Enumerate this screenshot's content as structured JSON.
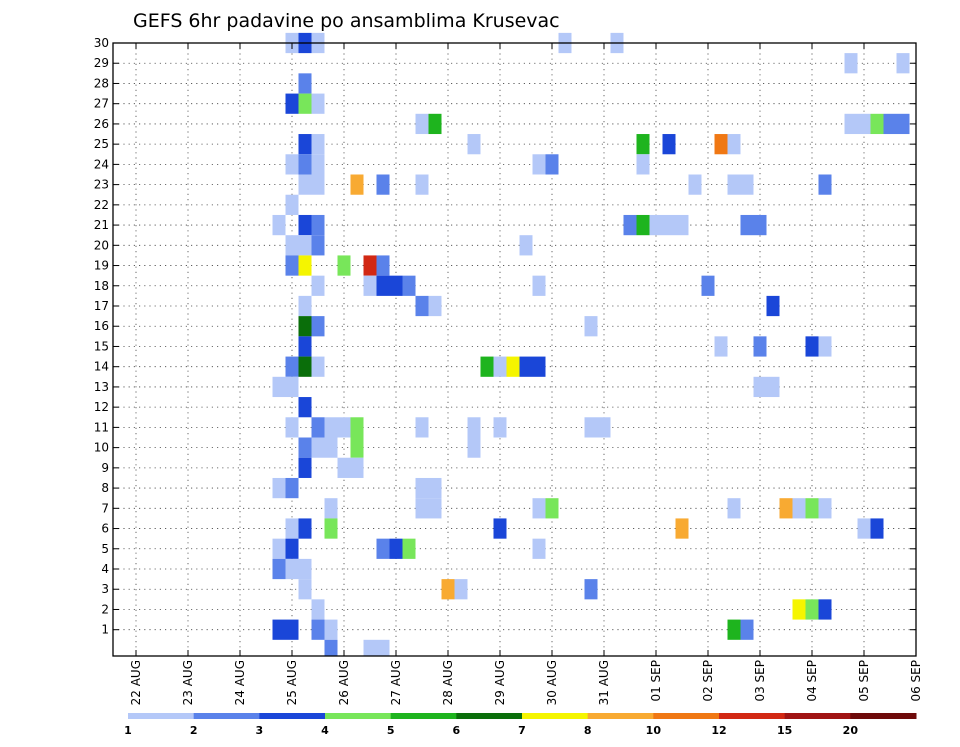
{
  "chart_data": {
    "type": "heatmap",
    "title": "GEFS 6hr padavine po ansamblima Krusevac",
    "xlabel": "",
    "ylabel": "",
    "x_range": [
      "22 AUG",
      "06 SEP"
    ],
    "y_range": [
      0,
      30
    ],
    "x_step": "6h",
    "grid": true,
    "x_ticks": [
      "22 AUG",
      "23 AUG",
      "24 AUG",
      "25 AUG",
      "26 AUG",
      "27 AUG",
      "28 AUG",
      "29 AUG",
      "30 AUG",
      "31 AUG",
      "01 SEP",
      "02 SEP",
      "03 SEP",
      "04 SEP",
      "05 SEP",
      "06 SEP"
    ],
    "y_ticks": [
      1,
      2,
      3,
      4,
      5,
      6,
      7,
      8,
      9,
      10,
      11,
      12,
      13,
      14,
      15,
      16,
      17,
      18,
      19,
      20,
      21,
      22,
      23,
      24,
      25,
      26,
      27,
      28,
      29,
      30
    ],
    "legend": {
      "position": "bottom",
      "labels": [
        "1",
        "2",
        "3",
        "4",
        "5",
        "6",
        "7",
        "8",
        "10",
        "12",
        "15",
        "20"
      ],
      "colors": [
        "#b4c8f8",
        "#5a82ea",
        "#1a46d8",
        "#78e65a",
        "#1eb41e",
        "#0a6e0a",
        "#f5f500",
        "#f8aa32",
        "#f07814",
        "#d22814",
        "#a01414",
        "#6e0a0a"
      ]
    },
    "cell_date_format": "DD MMM HH (UTC)",
    "cells": [
      {
        "m": 30,
        "t": "25 AUG 00",
        "c": 1
      },
      {
        "m": 30,
        "t": "25 AUG 06",
        "c": 3
      },
      {
        "m": 30,
        "t": "25 AUG 12",
        "c": 1
      },
      {
        "m": 30,
        "t": "30 AUG 06",
        "c": 1
      },
      {
        "m": 30,
        "t": "31 AUG 06",
        "c": 1
      },
      {
        "m": 29,
        "t": "04 SEP 18",
        "c": 1
      },
      {
        "m": 29,
        "t": "05 SEP 18",
        "c": 1
      },
      {
        "m": 28,
        "t": "25 AUG 06",
        "c": 2
      },
      {
        "m": 27,
        "t": "25 AUG 00",
        "c": 3
      },
      {
        "m": 27,
        "t": "25 AUG 06",
        "c": 4
      },
      {
        "m": 27,
        "t": "25 AUG 12",
        "c": 1
      },
      {
        "m": 26,
        "t": "27 AUG 12",
        "c": 1
      },
      {
        "m": 26,
        "t": "27 AUG 18",
        "c": 5
      },
      {
        "m": 26,
        "t": "04 SEP 18",
        "c": 1
      },
      {
        "m": 26,
        "t": "05 SEP 00",
        "c": 1
      },
      {
        "m": 26,
        "t": "05 SEP 06",
        "c": 4
      },
      {
        "m": 26,
        "t": "05 SEP 12",
        "c": 2
      },
      {
        "m": 26,
        "t": "05 SEP 18",
        "c": 2
      },
      {
        "m": 25,
        "t": "25 AUG 06",
        "c": 3
      },
      {
        "m": 25,
        "t": "25 AUG 12",
        "c": 1
      },
      {
        "m": 25,
        "t": "28 AUG 12",
        "c": 1
      },
      {
        "m": 25,
        "t": "31 AUG 18",
        "c": 5
      },
      {
        "m": 25,
        "t": "01 SEP 06",
        "c": 3
      },
      {
        "m": 25,
        "t": "02 SEP 06",
        "c": 10
      },
      {
        "m": 25,
        "t": "02 SEP 12",
        "c": 1
      },
      {
        "m": 24,
        "t": "25 AUG 00",
        "c": 1
      },
      {
        "m": 24,
        "t": "25 AUG 06",
        "c": 2
      },
      {
        "m": 24,
        "t": "25 AUG 12",
        "c": 1
      },
      {
        "m": 24,
        "t": "29 AUG 18",
        "c": 1
      },
      {
        "m": 24,
        "t": "30 AUG 00",
        "c": 2
      },
      {
        "m": 24,
        "t": "31 AUG 18",
        "c": 1
      },
      {
        "m": 23,
        "t": "25 AUG 06",
        "c": 1
      },
      {
        "m": 23,
        "t": "25 AUG 12",
        "c": 1
      },
      {
        "m": 23,
        "t": "26 AUG 06",
        "c": 8
      },
      {
        "m": 23,
        "t": "26 AUG 18",
        "c": 2
      },
      {
        "m": 23,
        "t": "27 AUG 12",
        "c": 1
      },
      {
        "m": 23,
        "t": "01 SEP 18",
        "c": 1
      },
      {
        "m": 23,
        "t": "02 SEP 12",
        "c": 1
      },
      {
        "m": 23,
        "t": "02 SEP 18",
        "c": 1
      },
      {
        "m": 23,
        "t": "04 SEP 06",
        "c": 2
      },
      {
        "m": 22,
        "t": "25 AUG 00",
        "c": 1
      },
      {
        "m": 21,
        "t": "24 AUG 18",
        "c": 1
      },
      {
        "m": 21,
        "t": "25 AUG 06",
        "c": 3
      },
      {
        "m": 21,
        "t": "25 AUG 12",
        "c": 2
      },
      {
        "m": 21,
        "t": "31 AUG 12",
        "c": 2
      },
      {
        "m": 21,
        "t": "31 AUG 18",
        "c": 5
      },
      {
        "m": 21,
        "t": "01 SEP 00",
        "c": 1
      },
      {
        "m": 21,
        "t": "01 SEP 06",
        "c": 1
      },
      {
        "m": 21,
        "t": "01 SEP 12",
        "c": 1
      },
      {
        "m": 21,
        "t": "02 SEP 18",
        "c": 2
      },
      {
        "m": 21,
        "t": "03 SEP 00",
        "c": 2
      },
      {
        "m": 20,
        "t": "25 AUG 00",
        "c": 1
      },
      {
        "m": 20,
        "t": "25 AUG 06",
        "c": 1
      },
      {
        "m": 20,
        "t": "25 AUG 12",
        "c": 2
      },
      {
        "m": 20,
        "t": "29 AUG 12",
        "c": 1
      },
      {
        "m": 19,
        "t": "25 AUG 00",
        "c": 2
      },
      {
        "m": 19,
        "t": "25 AUG 06",
        "c": 7
      },
      {
        "m": 19,
        "t": "26 AUG 00",
        "c": 4
      },
      {
        "m": 19,
        "t": "26 AUG 12",
        "c": 12
      },
      {
        "m": 19,
        "t": "26 AUG 18",
        "c": 2
      },
      {
        "m": 18,
        "t": "25 AUG 12",
        "c": 1
      },
      {
        "m": 18,
        "t": "26 AUG 12",
        "c": 1
      },
      {
        "m": 18,
        "t": "26 AUG 18",
        "c": 3
      },
      {
        "m": 18,
        "t": "27 AUG 00",
        "c": 3
      },
      {
        "m": 18,
        "t": "27 AUG 06",
        "c": 2
      },
      {
        "m": 18,
        "t": "29 AUG 18",
        "c": 1
      },
      {
        "m": 18,
        "t": "02 SEP 00",
        "c": 2
      },
      {
        "m": 17,
        "t": "25 AUG 06",
        "c": 1
      },
      {
        "m": 17,
        "t": "27 AUG 12",
        "c": 2
      },
      {
        "m": 17,
        "t": "27 AUG 18",
        "c": 1
      },
      {
        "m": 17,
        "t": "03 SEP 06",
        "c": 3
      },
      {
        "m": 16,
        "t": "25 AUG 06",
        "c": 6
      },
      {
        "m": 16,
        "t": "25 AUG 12",
        "c": 2
      },
      {
        "m": 16,
        "t": "30 AUG 18",
        "c": 1
      },
      {
        "m": 15,
        "t": "25 AUG 06",
        "c": 3
      },
      {
        "m": 15,
        "t": "02 SEP 06",
        "c": 1
      },
      {
        "m": 15,
        "t": "03 SEP 00",
        "c": 2
      },
      {
        "m": 15,
        "t": "04 SEP 00",
        "c": 3
      },
      {
        "m": 15,
        "t": "04 SEP 06",
        "c": 1
      },
      {
        "m": 14,
        "t": "25 AUG 00",
        "c": 2
      },
      {
        "m": 14,
        "t": "25 AUG 06",
        "c": 6
      },
      {
        "m": 14,
        "t": "25 AUG 12",
        "c": 1
      },
      {
        "m": 14,
        "t": "28 AUG 18",
        "c": 5
      },
      {
        "m": 14,
        "t": "29 AUG 00",
        "c": 1
      },
      {
        "m": 14,
        "t": "29 AUG 06",
        "c": 7
      },
      {
        "m": 14,
        "t": "29 AUG 12",
        "c": 3
      },
      {
        "m": 14,
        "t": "29 AUG 18",
        "c": 3
      },
      {
        "m": 13,
        "t": "24 AUG 18",
        "c": 1
      },
      {
        "m": 13,
        "t": "25 AUG 00",
        "c": 1
      },
      {
        "m": 13,
        "t": "03 SEP 00",
        "c": 1
      },
      {
        "m": 13,
        "t": "03 SEP 06",
        "c": 1
      },
      {
        "m": 12,
        "t": "25 AUG 06",
        "c": 3
      },
      {
        "m": 11,
        "t": "25 AUG 00",
        "c": 1
      },
      {
        "m": 11,
        "t": "25 AUG 12",
        "c": 2
      },
      {
        "m": 11,
        "t": "25 AUG 18",
        "c": 1
      },
      {
        "m": 11,
        "t": "26 AUG 00",
        "c": 1
      },
      {
        "m": 11,
        "t": "26 AUG 06",
        "c": 4
      },
      {
        "m": 11,
        "t": "27 AUG 12",
        "c": 1
      },
      {
        "m": 11,
        "t": "28 AUG 12",
        "c": 1
      },
      {
        "m": 11,
        "t": "29 AUG 00",
        "c": 1
      },
      {
        "m": 11,
        "t": "30 AUG 18",
        "c": 1
      },
      {
        "m": 11,
        "t": "31 AUG 00",
        "c": 1
      },
      {
        "m": 10,
        "t": "25 AUG 06",
        "c": 2
      },
      {
        "m": 10,
        "t": "25 AUG 12",
        "c": 1
      },
      {
        "m": 10,
        "t": "25 AUG 18",
        "c": 1
      },
      {
        "m": 10,
        "t": "26 AUG 06",
        "c": 4
      },
      {
        "m": 10,
        "t": "28 AUG 12",
        "c": 1
      },
      {
        "m": 9,
        "t": "25 AUG 06",
        "c": 3
      },
      {
        "m": 9,
        "t": "26 AUG 00",
        "c": 1
      },
      {
        "m": 9,
        "t": "26 AUG 06",
        "c": 1
      },
      {
        "m": 8,
        "t": "24 AUG 18",
        "c": 1
      },
      {
        "m": 8,
        "t": "25 AUG 00",
        "c": 2
      },
      {
        "m": 8,
        "t": "27 AUG 12",
        "c": 1
      },
      {
        "m": 8,
        "t": "27 AUG 18",
        "c": 1
      },
      {
        "m": 7,
        "t": "25 AUG 18",
        "c": 1
      },
      {
        "m": 7,
        "t": "27 AUG 12",
        "c": 1
      },
      {
        "m": 7,
        "t": "27 AUG 18",
        "c": 1
      },
      {
        "m": 7,
        "t": "29 AUG 18",
        "c": 1
      },
      {
        "m": 7,
        "t": "30 AUG 00",
        "c": 4
      },
      {
        "m": 7,
        "t": "02 SEP 12",
        "c": 1
      },
      {
        "m": 7,
        "t": "03 SEP 12",
        "c": 8
      },
      {
        "m": 7,
        "t": "03 SEP 18",
        "c": 1
      },
      {
        "m": 7,
        "t": "04 SEP 00",
        "c": 4
      },
      {
        "m": 7,
        "t": "04 SEP 06",
        "c": 1
      },
      {
        "m": 6,
        "t": "25 AUG 00",
        "c": 1
      },
      {
        "m": 6,
        "t": "25 AUG 06",
        "c": 3
      },
      {
        "m": 6,
        "t": "25 AUG 18",
        "c": 4
      },
      {
        "m": 6,
        "t": "29 AUG 00",
        "c": 3
      },
      {
        "m": 6,
        "t": "01 SEP 12",
        "c": 8
      },
      {
        "m": 6,
        "t": "05 SEP 00",
        "c": 1
      },
      {
        "m": 6,
        "t": "05 SEP 06",
        "c": 3
      },
      {
        "m": 5,
        "t": "24 AUG 18",
        "c": 1
      },
      {
        "m": 5,
        "t": "25 AUG 00",
        "c": 3
      },
      {
        "m": 5,
        "t": "26 AUG 18",
        "c": 2
      },
      {
        "m": 5,
        "t": "27 AUG 00",
        "c": 3
      },
      {
        "m": 5,
        "t": "27 AUG 06",
        "c": 4
      },
      {
        "m": 5,
        "t": "29 AUG 18",
        "c": 1
      },
      {
        "m": 4,
        "t": "24 AUG 18",
        "c": 2
      },
      {
        "m": 4,
        "t": "25 AUG 00",
        "c": 1
      },
      {
        "m": 4,
        "t": "25 AUG 06",
        "c": 1
      },
      {
        "m": 3,
        "t": "25 AUG 06",
        "c": 1
      },
      {
        "m": 3,
        "t": "28 AUG 00",
        "c": 8
      },
      {
        "m": 3,
        "t": "28 AUG 06",
        "c": 1
      },
      {
        "m": 3,
        "t": "30 AUG 18",
        "c": 2
      },
      {
        "m": 2,
        "t": "25 AUG 12",
        "c": 1
      },
      {
        "m": 2,
        "t": "03 SEP 18",
        "c": 7
      },
      {
        "m": 2,
        "t": "04 SEP 00",
        "c": 4
      },
      {
        "m": 2,
        "t": "04 SEP 06",
        "c": 3
      },
      {
        "m": 1,
        "t": "24 AUG 18",
        "c": 3
      },
      {
        "m": 1,
        "t": "25 AUG 00",
        "c": 3
      },
      {
        "m": 1,
        "t": "25 AUG 12",
        "c": 2
      },
      {
        "m": 1,
        "t": "25 AUG 18",
        "c": 1
      },
      {
        "m": 1,
        "t": "02 SEP 12",
        "c": 5
      },
      {
        "m": 1,
        "t": "02 SEP 18",
        "c": 2
      },
      {
        "m": 0,
        "t": "25 AUG 18",
        "c": 2
      },
      {
        "m": 0,
        "t": "26 AUG 12",
        "c": 1
      },
      {
        "m": 0,
        "t": "26 AUG 18",
        "c": 1
      }
    ]
  }
}
